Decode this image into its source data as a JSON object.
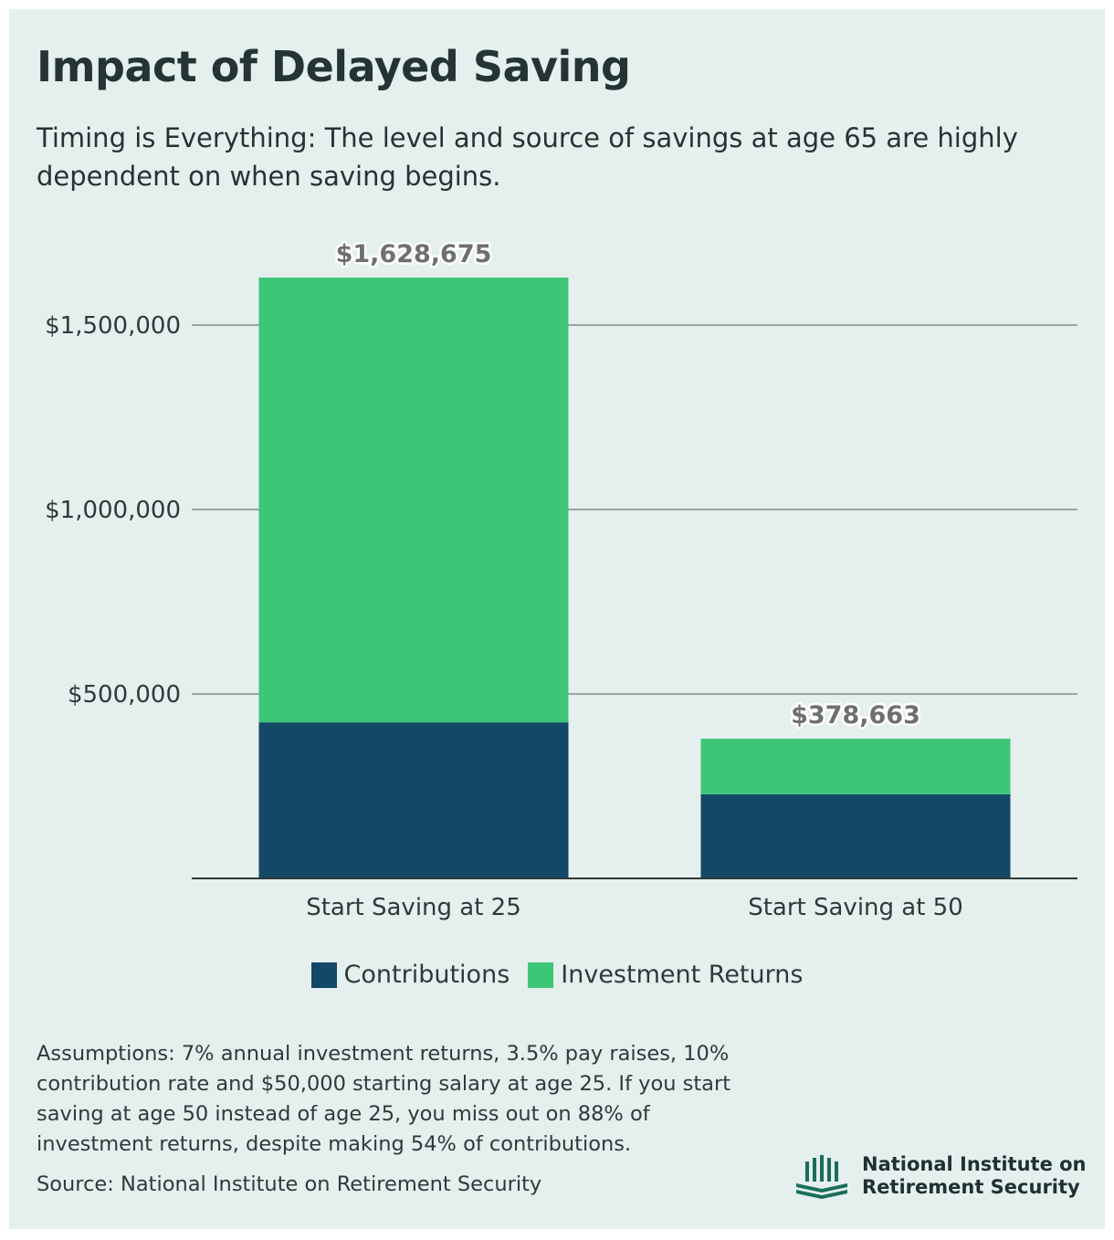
{
  "title": "Impact of Delayed Saving",
  "subtitle": "Timing is Everything: The level and source of savings at age 65 are highly dependent on when saving begins.",
  "colors": {
    "background": "#e4efee",
    "contributions": "#134966",
    "investment_returns": "#3ec677",
    "text": "#243433"
  },
  "chart_data": {
    "type": "bar",
    "stacked": true,
    "categories": [
      "Start Saving at 25",
      "Start Saving at 50"
    ],
    "series": [
      {
        "name": "Contributions",
        "values": [
          423000,
          228000
        ]
      },
      {
        "name": "Investment Returns",
        "values": [
          1205675,
          150663
        ]
      }
    ],
    "totals": [
      1628675,
      378663
    ],
    "total_labels": [
      "$1,628,675",
      "$378,663"
    ],
    "yticks": [
      500000,
      1000000,
      1500000
    ],
    "ytick_labels": [
      "$500,000",
      "$1,000,000",
      "$1,500,000"
    ],
    "ylim": [
      0,
      1750000
    ],
    "grid": true,
    "legend_position": "bottom"
  },
  "legend": {
    "contributions_label": "Contributions",
    "returns_label": "Investment Returns"
  },
  "notes": "Assumptions: 7% annual investment returns, 3.5% pay raises, 10% contribution rate and $50,000 starting salary at age 25. If you start saving at age 50 instead of age 25, you miss out on 88% of investment returns, despite making 54% of contributions.",
  "source": "Source: National Institute on Retirement Security",
  "org": {
    "line1": "National Institute on",
    "line2": "Retirement Security",
    "logo_icon": "columns-book-icon"
  }
}
